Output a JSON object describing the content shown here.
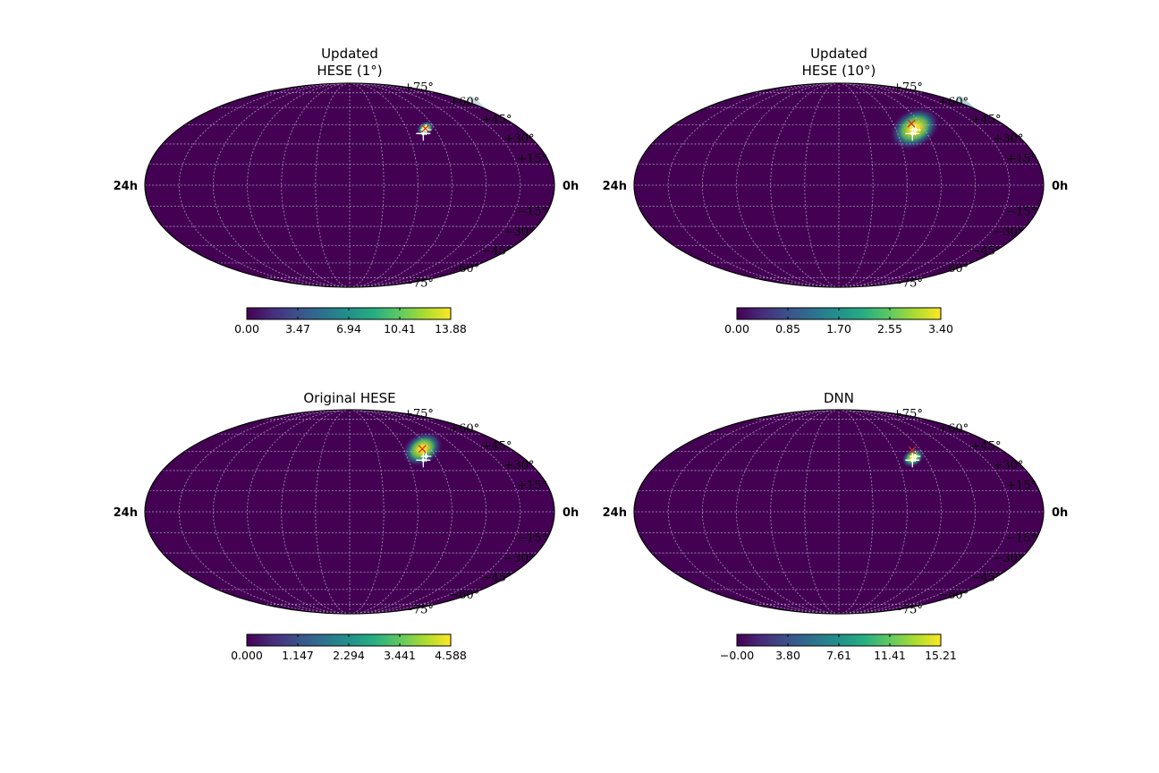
{
  "chart_data": [
    {
      "type": "heatmap",
      "projection": "mollweide",
      "title_lines": [
        "Updated",
        "HESE (1°)"
      ],
      "lat_labels": [
        "+75°",
        "+60°",
        "+45°",
        "+30°",
        "+15°",
        "−15°",
        "−30°",
        "−45°",
        "−60°",
        "−75°"
      ],
      "ra_labels": [
        "24h",
        "0h"
      ],
      "colormap": "viridis",
      "colorbar": {
        "min": 0.0,
        "max": 13.88,
        "ticks": [
          "0.00",
          "3.47",
          "6.94",
          "10.41",
          "13.88"
        ]
      },
      "hotspot": {
        "ra_deg": 100,
        "dec_deg": 42,
        "spread_deg": 4,
        "peak": 13.88
      },
      "markers": {
        "white_cross": {
          "ra_deg": 105,
          "dec_deg": 38
        },
        "white_cross_2": {
          "ra_deg": 100,
          "dec_deg": 41
        },
        "red_x": {
          "ra_deg": 100,
          "dec_deg": 42
        }
      },
      "grid": true
    },
    {
      "type": "heatmap",
      "projection": "mollweide",
      "title_lines": [
        "Updated",
        "HESE (10°)"
      ],
      "lat_labels": [
        "+75°",
        "+60°",
        "+45°",
        "+30°",
        "+15°",
        "−15°",
        "−30°",
        "−45°",
        "−60°",
        "−75°"
      ],
      "ra_labels": [
        "24h",
        "0h"
      ],
      "colormap": "viridis",
      "colorbar": {
        "min": 0.0,
        "max": 3.4,
        "ticks": [
          "0.00",
          "0.85",
          "1.70",
          "2.55",
          "3.40"
        ]
      },
      "hotspot": {
        "ra_deg": 100,
        "dec_deg": 42,
        "spread_deg": 11,
        "peak": 3.4
      },
      "markers": {
        "white_cross": {
          "ra_deg": 105,
          "dec_deg": 38
        },
        "white_cross_2": {
          "ra_deg": 100,
          "dec_deg": 41
        },
        "red_x": {
          "ra_deg": 100,
          "dec_deg": 46
        }
      },
      "grid": true
    },
    {
      "type": "heatmap",
      "projection": "mollweide",
      "title_lines": [
        "Original HESE"
      ],
      "lat_labels": [
        "+75°",
        "+60°",
        "+45°",
        "+30°",
        "+15°",
        "−15°",
        "−30°",
        "−45°",
        "−60°",
        "−75°"
      ],
      "ra_labels": [
        "24h",
        "0h"
      ],
      "colormap": "viridis",
      "colorbar": {
        "min": 0.0,
        "max": 4.588,
        "ticks": [
          "0.000",
          "1.147",
          "2.294",
          "3.441",
          "4.588"
        ]
      },
      "hotspot": {
        "ra_deg": 99,
        "dec_deg": 47,
        "spread_deg": 9,
        "peak": 4.588
      },
      "markers": {
        "white_cross": {
          "ra_deg": 105,
          "dec_deg": 38
        },
        "white_cross_2": {
          "ra_deg": 100,
          "dec_deg": 41
        },
        "red_x": {
          "ra_deg": 99,
          "dec_deg": 47
        }
      },
      "grid": true
    },
    {
      "type": "heatmap",
      "projection": "mollweide",
      "title_lines": [
        "DNN"
      ],
      "lat_labels": [
        "+75°",
        "+60°",
        "+45°",
        "+30°",
        "+15°",
        "−15°",
        "−30°",
        "−45°",
        "−60°",
        "−75°"
      ],
      "ra_labels": [
        "24h",
        "0h"
      ],
      "colormap": "viridis",
      "colorbar": {
        "min": 0.0,
        "max": 15.21,
        "ticks": [
          "−0.00",
          "3.80",
          "7.61",
          "11.41",
          "15.21"
        ]
      },
      "hotspot": {
        "ra_deg": 103,
        "dec_deg": 40,
        "spread_deg": 5,
        "peak": 15.21
      },
      "markers": {
        "white_cross": {
          "ra_deg": 105,
          "dec_deg": 38
        },
        "white_cross_2": {
          "ra_deg": 100,
          "dec_deg": 41
        },
        "red_x": {
          "ra_deg": 99,
          "dec_deg": 46
        }
      },
      "grid": true
    }
  ],
  "colors": {
    "background": "#ffffff",
    "map_fill": "#440154",
    "grid": "#c8c8d8",
    "cross": "#ffffff",
    "red_x": "#d62728"
  }
}
